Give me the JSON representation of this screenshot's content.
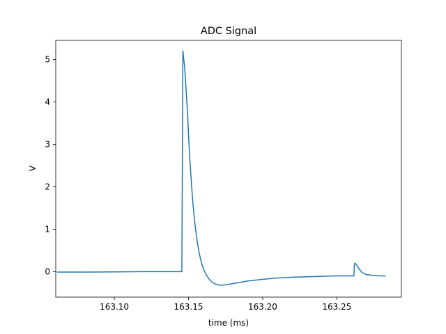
{
  "chart_data": {
    "type": "line",
    "title": "ADC Signal",
    "xlabel": "time (ms)",
    "ylabel": "V",
    "xlim": [
      163.0605,
      163.2935
    ],
    "ylim": [
      -0.6,
      5.45
    ],
    "xticks": [
      "163.10",
      "163.15",
      "163.20",
      "163.25"
    ],
    "xtick_values": [
      163.1,
      163.15,
      163.2,
      163.25
    ],
    "yticks": [
      "0",
      "1",
      "2",
      "3",
      "4",
      "5"
    ],
    "ytick_values": [
      0,
      1,
      2,
      3,
      4,
      5
    ],
    "grid": false,
    "series": [
      {
        "color": "#1f77b4",
        "x": [
          163.0616,
          163.08,
          163.1,
          163.12,
          163.14,
          163.1455,
          163.1462,
          163.1468,
          163.1473,
          163.1478,
          163.1485,
          163.1495,
          163.15,
          163.151,
          163.152,
          163.153,
          163.154,
          163.155,
          163.156,
          163.157,
          163.158,
          163.159,
          163.16,
          163.162,
          163.164,
          163.166,
          163.168,
          163.17,
          163.172,
          163.175,
          163.18,
          163.19,
          163.2,
          163.21,
          163.22,
          163.23,
          163.24,
          163.25,
          163.255,
          163.2615,
          163.2618,
          163.2625,
          163.263,
          163.264,
          163.265,
          163.267,
          163.27,
          163.275,
          163.28,
          163.2826
        ],
        "y": [
          -0.01,
          -0.01,
          -0.005,
          0.0,
          0.0,
          0.0,
          5.2,
          5.0,
          4.85,
          4.6,
          4.2,
          3.65,
          3.2,
          2.6,
          2.05,
          1.6,
          1.23,
          0.93,
          0.68,
          0.48,
          0.31,
          0.18,
          0.07,
          -0.08,
          -0.18,
          -0.25,
          -0.29,
          -0.31,
          -0.32,
          -0.31,
          -0.28,
          -0.22,
          -0.18,
          -0.15,
          -0.13,
          -0.12,
          -0.11,
          -0.1,
          -0.1,
          -0.1,
          0.18,
          0.2,
          0.17,
          0.12,
          0.06,
          -0.02,
          -0.07,
          -0.09,
          -0.1,
          -0.1
        ]
      }
    ]
  }
}
